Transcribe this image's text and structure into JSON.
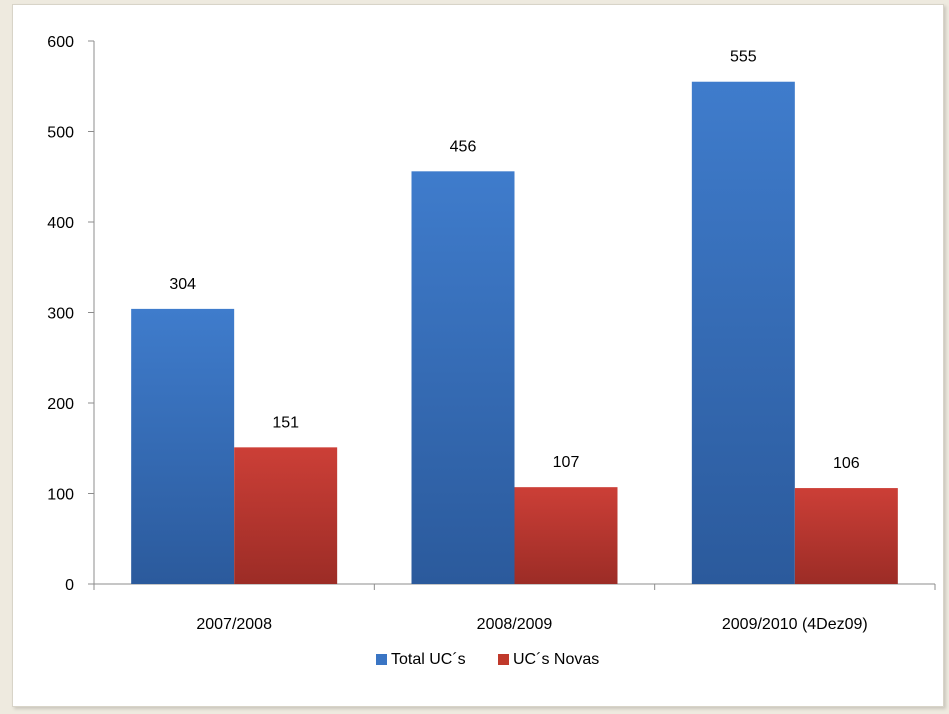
{
  "chart_data": {
    "type": "bar",
    "title": "",
    "xlabel": "",
    "ylabel": "",
    "categories": [
      "2007/2008",
      "2008/2009",
      "2009/2010 (4Dez09)"
    ],
    "series": [
      {
        "name": "Total UC´s",
        "values": [
          304,
          456,
          555
        ],
        "color": "#3a75c4"
      },
      {
        "name": "UC´s Novas",
        "values": [
          151,
          107,
          106
        ],
        "color": "#c0392b"
      }
    ],
    "ylim": [
      0,
      600
    ],
    "yticks": [
      0,
      100,
      200,
      300,
      400,
      500,
      600
    ],
    "grid": false,
    "legend_position": "bottom-center",
    "data_labels": true
  }
}
